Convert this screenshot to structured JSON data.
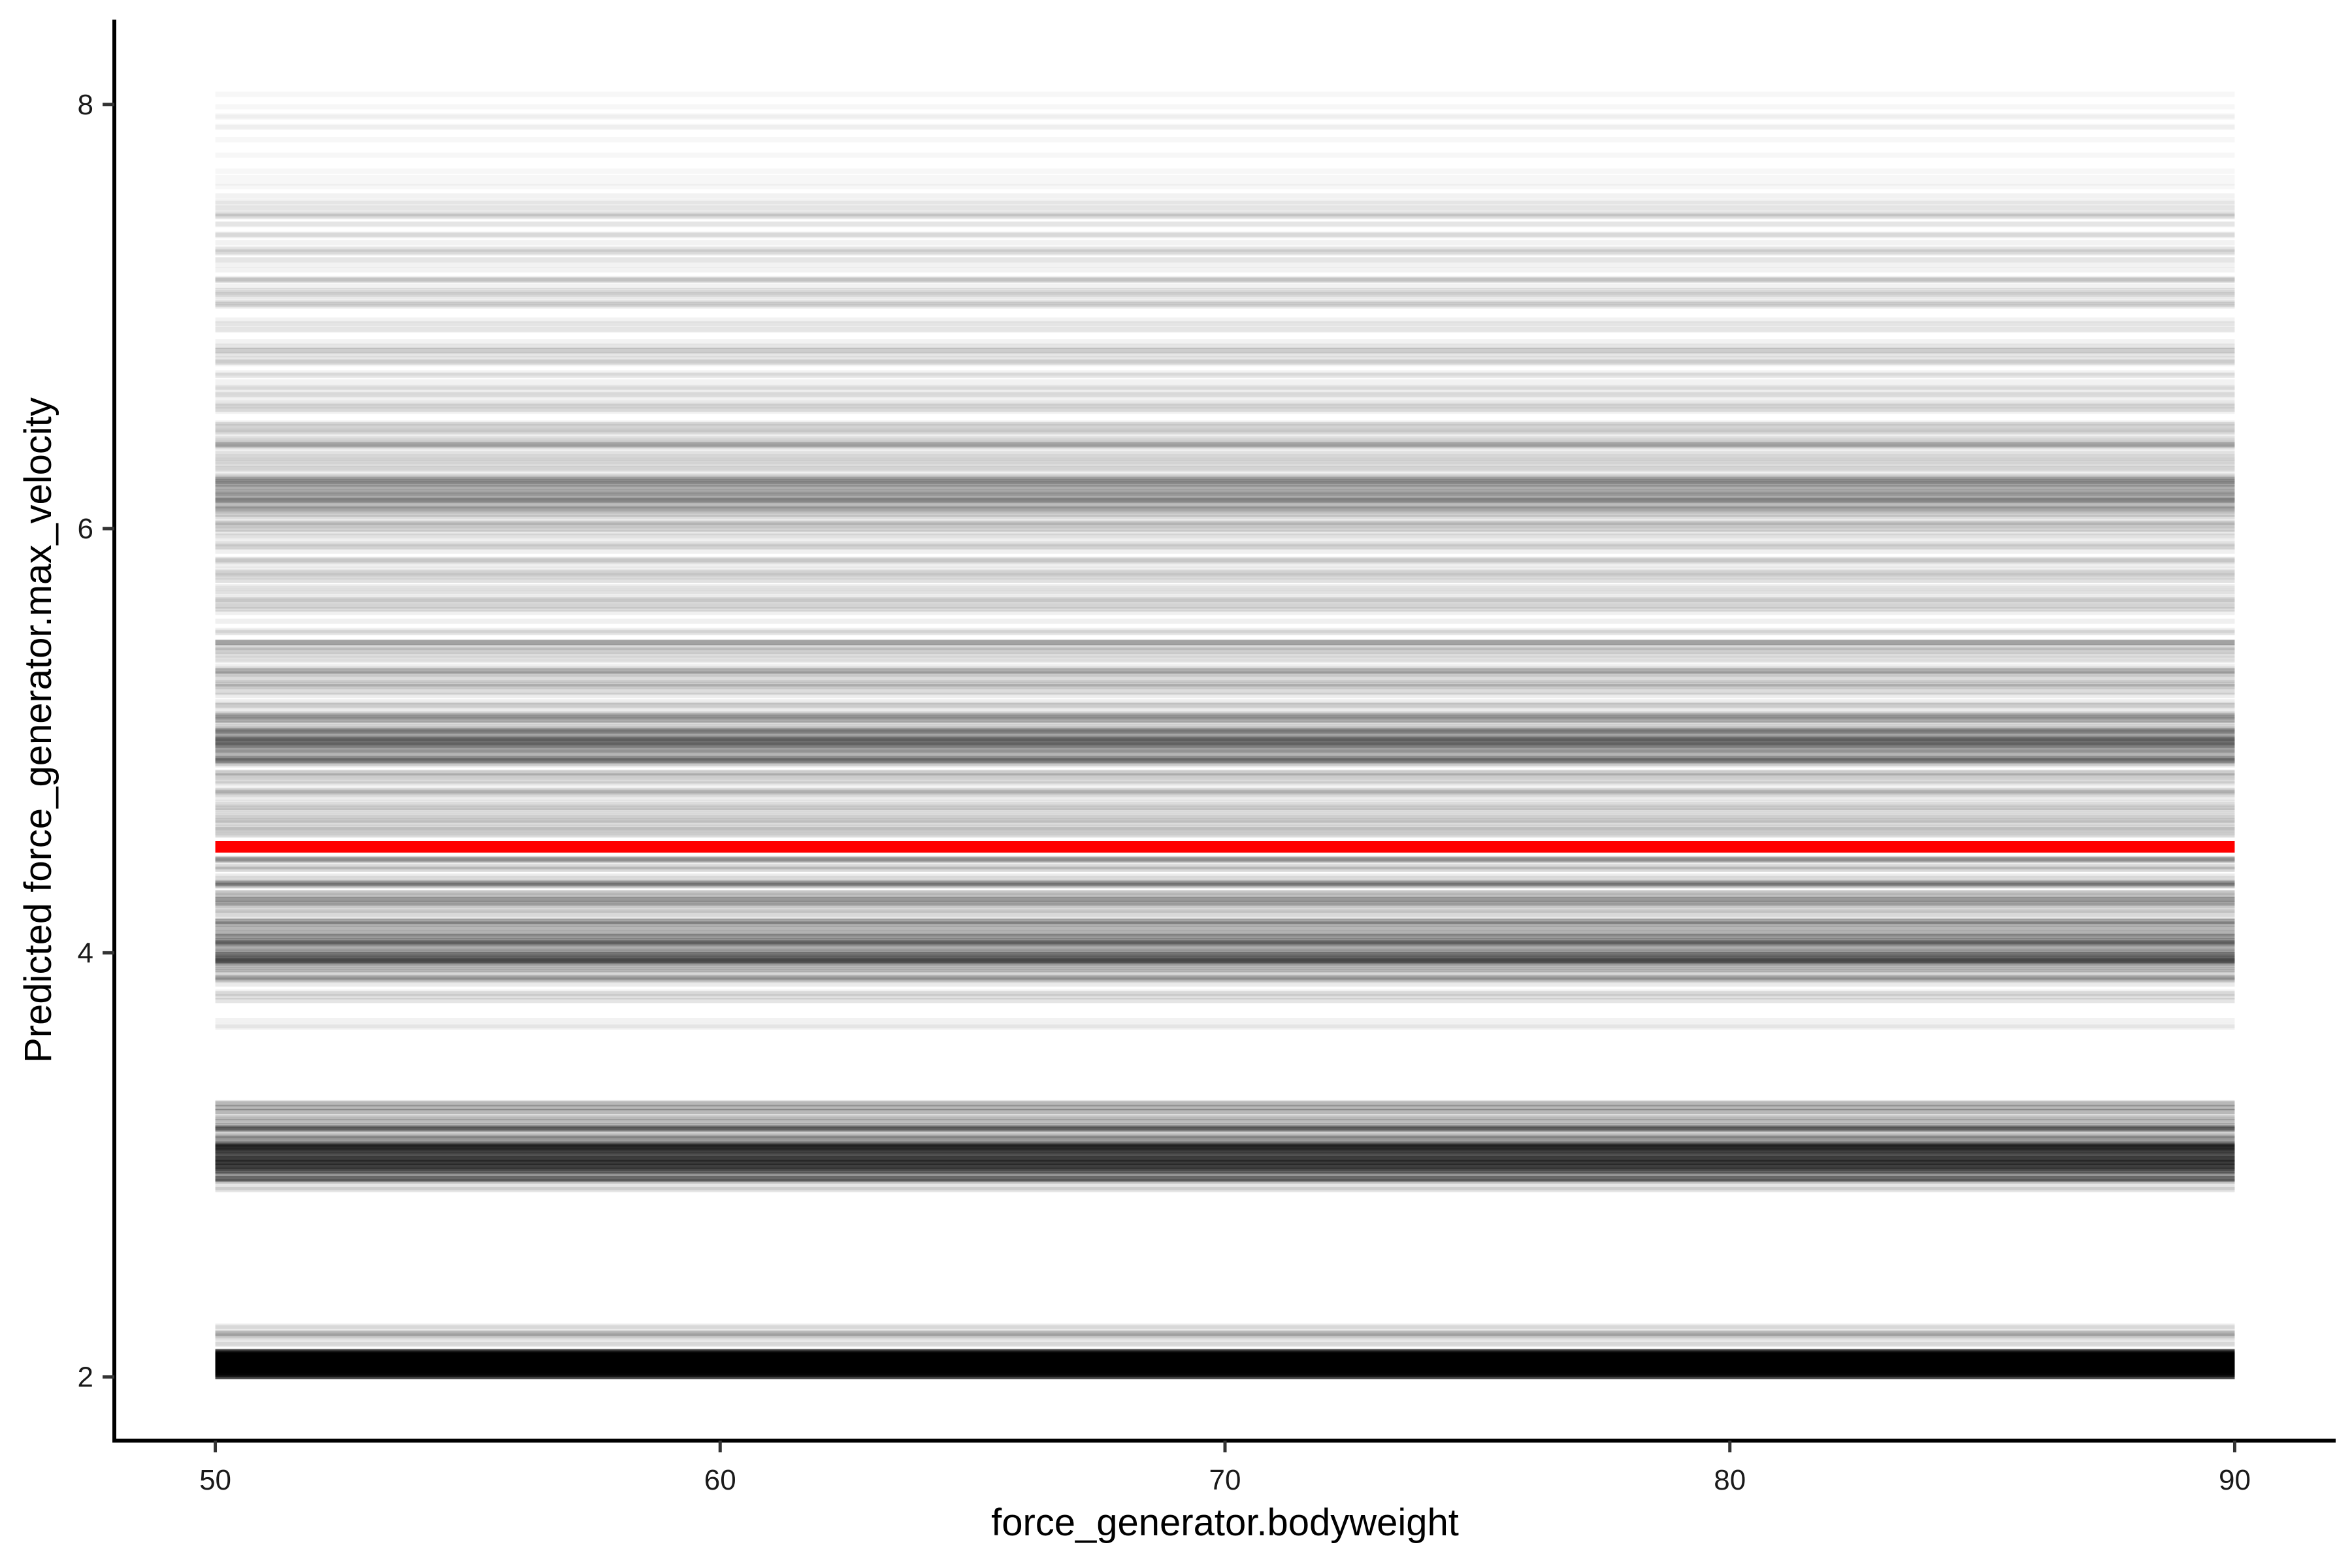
{
  "chart_data": {
    "type": "line",
    "title": "",
    "xlabel": "force_generator.bodyweight",
    "ylabel": "Predicted force_generator.max_velocity",
    "xlim": [
      48,
      92
    ],
    "ylim": [
      1.7,
      8.4
    ],
    "xticks": [
      "50",
      "60",
      "70",
      "80",
      "90"
    ],
    "yticks": [
      "2",
      "4",
      "6",
      "8"
    ],
    "grid": false,
    "legend": "none",
    "x_range": [
      50,
      90
    ],
    "ice_color": "#000000",
    "average_color": "#ff0000",
    "average_line": {
      "x": [
        50,
        90
      ],
      "y": [
        4.5,
        4.5
      ]
    },
    "ice_bands": [
      {
        "from": 2.0,
        "to": 2.12,
        "n": 120,
        "alpha": 0.22
      },
      {
        "from": 2.12,
        "to": 2.25,
        "n": 12,
        "alpha": 0.08
      },
      {
        "from": 2.88,
        "to": 3.3,
        "n": 80,
        "alpha": 0.1
      },
      {
        "from": 2.95,
        "to": 3.1,
        "n": 40,
        "alpha": 0.12
      },
      {
        "from": 3.6,
        "to": 3.85,
        "n": 10,
        "alpha": 0.05
      },
      {
        "from": 3.85,
        "to": 4.45,
        "n": 90,
        "alpha": 0.08
      },
      {
        "from": 3.95,
        "to": 4.1,
        "n": 30,
        "alpha": 0.1
      },
      {
        "from": 4.55,
        "to": 5.5,
        "n": 110,
        "alpha": 0.07
      },
      {
        "from": 4.9,
        "to": 5.15,
        "n": 40,
        "alpha": 0.08
      },
      {
        "from": 5.5,
        "to": 6.5,
        "n": 100,
        "alpha": 0.06
      },
      {
        "from": 6.0,
        "to": 6.25,
        "n": 35,
        "alpha": 0.07
      },
      {
        "from": 6.55,
        "to": 7.6,
        "n": 80,
        "alpha": 0.05
      },
      {
        "from": 7.6,
        "to": 8.1,
        "n": 12,
        "alpha": 0.03
      }
    ]
  }
}
